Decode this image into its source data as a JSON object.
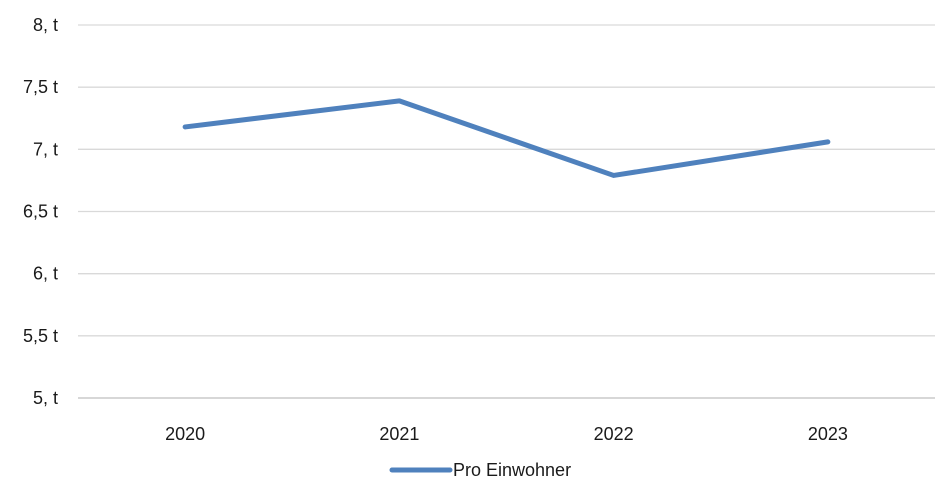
{
  "chart_data": {
    "type": "line",
    "title": "",
    "xlabel": "",
    "ylabel": "",
    "categories": [
      "2020",
      "2021",
      "2022",
      "2023"
    ],
    "series": [
      {
        "name": "Pro Einwohner",
        "color": "#4f81bd",
        "values": [
          7.18,
          7.39,
          6.79,
          7.06
        ]
      }
    ],
    "y_ticks": [
      {
        "value": 5.0,
        "label": "5, t"
      },
      {
        "value": 5.5,
        "label": "5,5 t"
      },
      {
        "value": 6.0,
        "label": "6, t"
      },
      {
        "value": 6.5,
        "label": "6,5 t"
      },
      {
        "value": 7.0,
        "label": "7, t"
      },
      {
        "value": 7.5,
        "label": "7,5 t"
      },
      {
        "value": 8.0,
        "label": "8, t"
      }
    ],
    "ylim": [
      5,
      8
    ],
    "grid": true,
    "legend": "bottom-center",
    "gridline_color": "#d9d9d9",
    "axis_line_color": "#bfbfbf"
  }
}
